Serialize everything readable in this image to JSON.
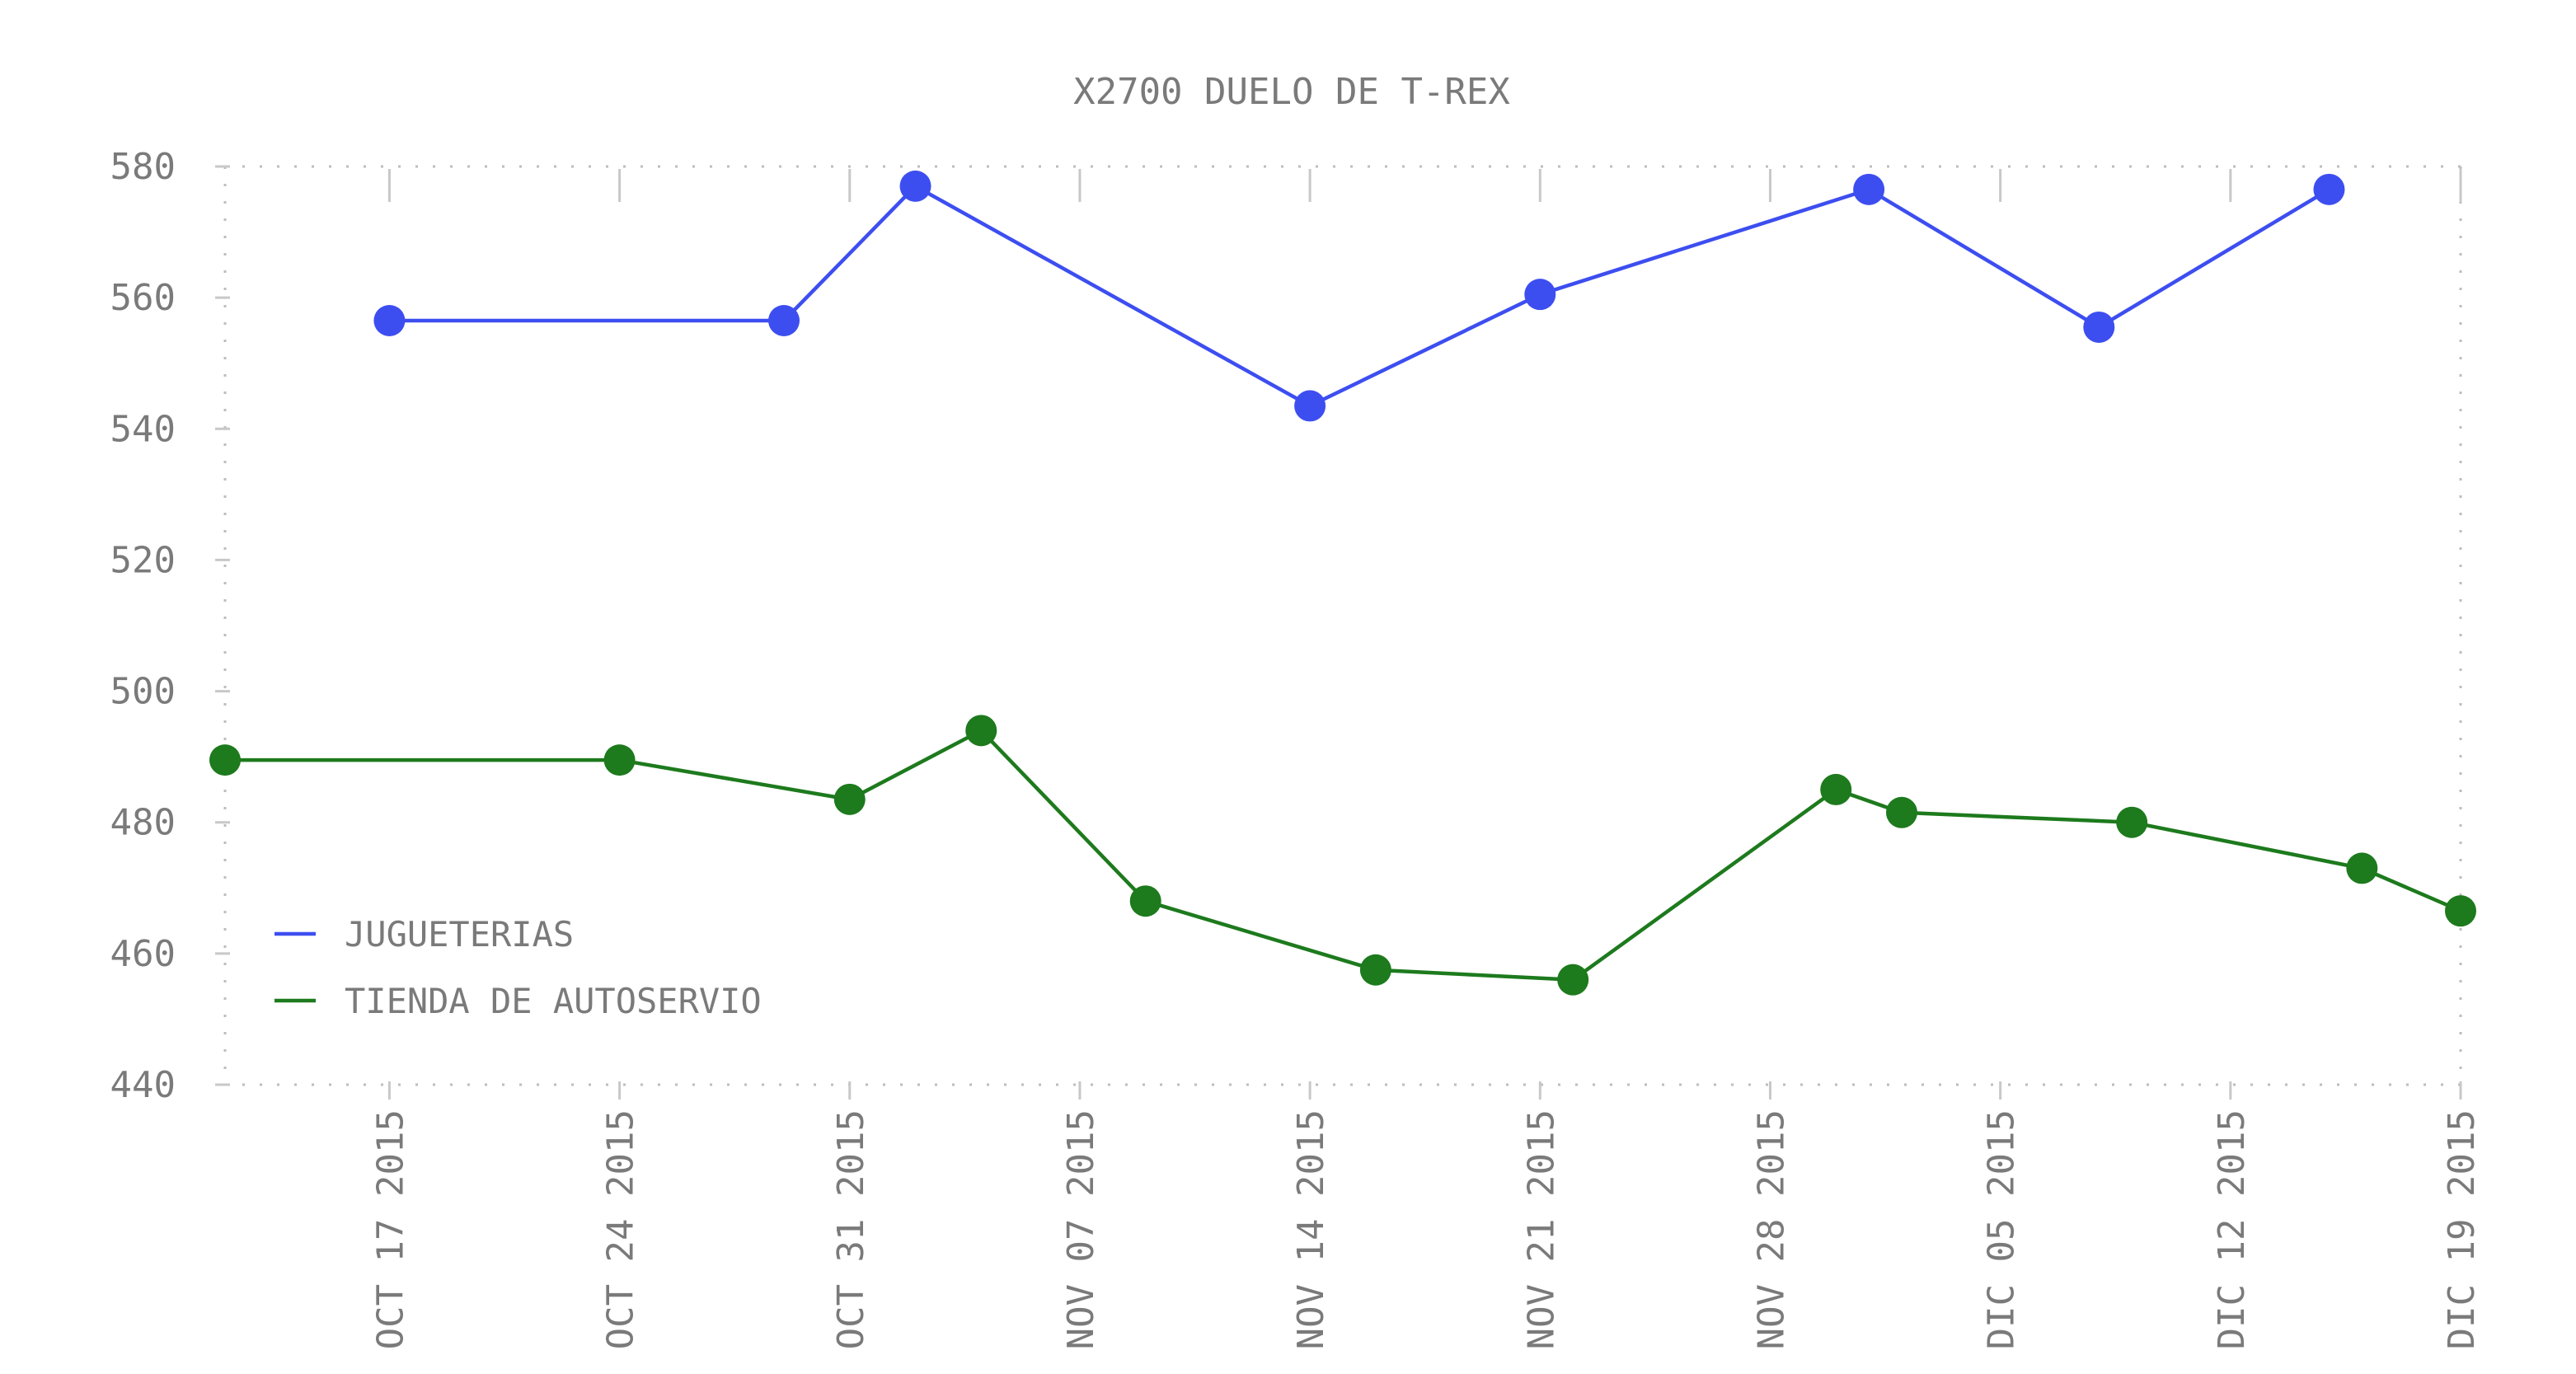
{
  "chart_data": {
    "type": "line",
    "title": "X2700 DUELO DE T-REX",
    "xlabel": "",
    "ylabel": "",
    "ylim": [
      440,
      580
    ],
    "yticks": [
      440,
      460,
      480,
      500,
      520,
      540,
      560,
      580
    ],
    "xlim": [
      "2015-10-12",
      "2015-12-19"
    ],
    "xticks": [
      "2015-10-17",
      "2015-10-24",
      "2015-10-31",
      "2015-11-07",
      "2015-11-14",
      "2015-11-21",
      "2015-11-28",
      "2015-12-05",
      "2015-12-12",
      "2015-12-19"
    ],
    "xtick_labels": [
      "OCT 17 2015",
      "OCT 24 2015",
      "OCT 31 2015",
      "NOV 07 2015",
      "NOV 14 2015",
      "NOV 21 2015",
      "NOV 28 2015",
      "DIC 05 2015",
      "DIC 12 2015",
      "DIC 19 2015"
    ],
    "grid": "dotted frame",
    "legend_position": "bottom-left",
    "series": [
      {
        "name": "JUGUETERIAS",
        "color": "#3d4ef0",
        "points": [
          {
            "x": "2015-10-17",
            "y": 556.5
          },
          {
            "x": "2015-10-29",
            "y": 556.5
          },
          {
            "x": "2015-11-02",
            "y": 577
          },
          {
            "x": "2015-11-14",
            "y": 543.5
          },
          {
            "x": "2015-11-21",
            "y": 560.5
          },
          {
            "x": "2015-12-01",
            "y": 576.5
          },
          {
            "x": "2015-12-08",
            "y": 555.5
          },
          {
            "x": "2015-12-15",
            "y": 576.5
          }
        ]
      },
      {
        "name": "TIENDA DE AUTOSERVIO",
        "color": "#1d7a1d",
        "points": [
          {
            "x": "2015-10-12",
            "y": 489.5
          },
          {
            "x": "2015-10-24",
            "y": 489.5
          },
          {
            "x": "2015-10-31",
            "y": 483.5
          },
          {
            "x": "2015-11-04",
            "y": 494
          },
          {
            "x": "2015-11-09",
            "y": 468
          },
          {
            "x": "2015-11-16",
            "y": 457.5
          },
          {
            "x": "2015-11-22",
            "y": 456
          },
          {
            "x": "2015-11-30",
            "y": 485
          },
          {
            "x": "2015-12-02",
            "y": 481.5
          },
          {
            "x": "2015-12-09",
            "y": 480
          },
          {
            "x": "2015-12-16",
            "y": 473
          },
          {
            "x": "2015-12-19",
            "y": 466.5
          }
        ]
      }
    ]
  }
}
